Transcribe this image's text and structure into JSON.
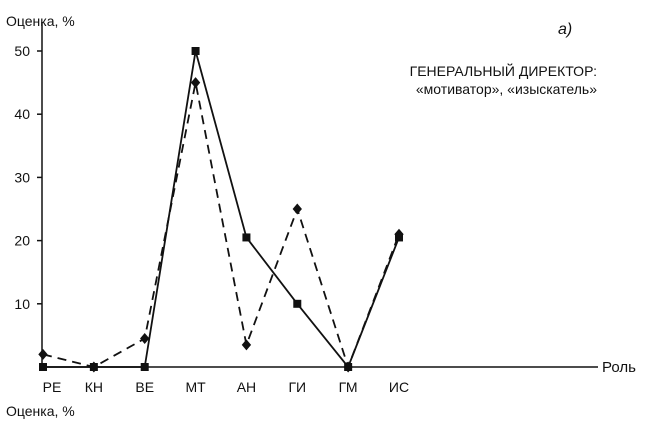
{
  "chart_data": {
    "type": "line",
    "panel_label": "а)",
    "ylabel": "Оценка, %",
    "xlabel": "Роль",
    "bottom_label": "Оценка, %",
    "annotation": [
      "ГЕНЕРАЛЬНЫЙ ДИРЕКТОР:",
      "«мотиватор», «изыскатель»"
    ],
    "categories": [
      "РЕ",
      "КН",
      "ВЕ",
      "МТ",
      "АН",
      "ГИ",
      "ГМ",
      "ИС"
    ],
    "yticks": [
      10,
      20,
      30,
      40,
      50
    ],
    "ylim": [
      0,
      55
    ],
    "grid": false,
    "series": [
      {
        "marker": "square",
        "line": "solid",
        "color": "#111111",
        "values": [
          0,
          0,
          0,
          50,
          20.5,
          10,
          0,
          20.5
        ]
      },
      {
        "marker": "diamond",
        "line": "dashed",
        "color": "#111111",
        "values": [
          2,
          0,
          4.5,
          45,
          3.5,
          25,
          0,
          21
        ]
      }
    ]
  }
}
